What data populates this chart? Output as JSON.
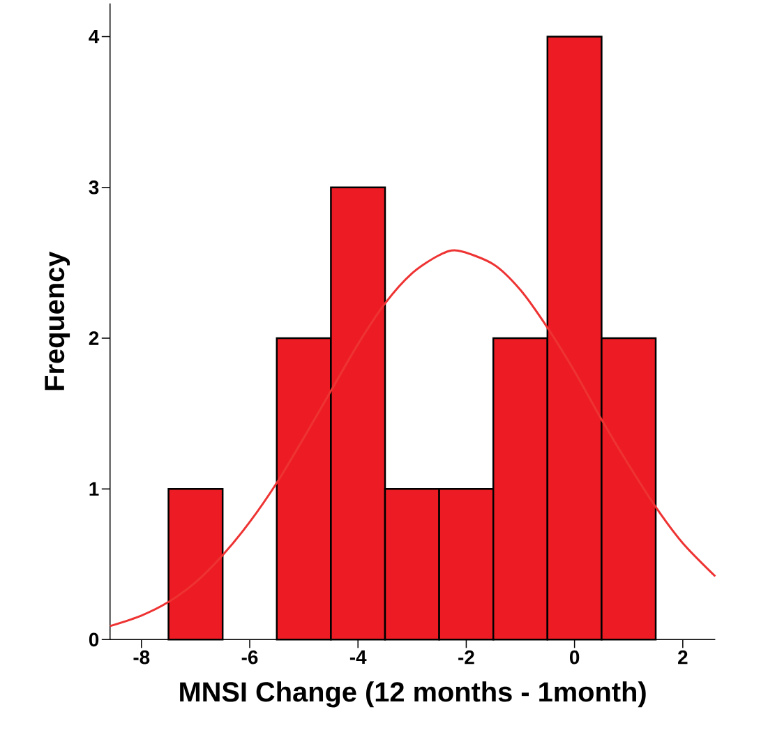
{
  "chart_data": {
    "type": "histogram",
    "xlabel": "MNSI Change (12 months - 1month)",
    "ylabel": "Frequency",
    "bins": [
      -7.5,
      -6.5,
      -5.5,
      -4.5,
      -3.5,
      -2.5,
      -1.5,
      -0.5,
      0.5,
      1.5
    ],
    "values": [
      1,
      0,
      2,
      3,
      1,
      1,
      2,
      4,
      2
    ],
    "color": "#ed1c24",
    "series": [
      {
        "type": "line",
        "color": "#ee3333",
        "x": [
          -8.58,
          -8,
          -7.5,
          -7,
          -6.5,
          -6,
          -5.5,
          -5,
          -4.5,
          -4,
          -3.5,
          -3,
          -2.5,
          -2.15,
          -1.5,
          -1,
          -0.5,
          0,
          0.5,
          1,
          1.5,
          2,
          2.6
        ],
        "values": [
          0.09,
          0.16,
          0.25,
          0.38,
          0.56,
          0.78,
          1.04,
          1.34,
          1.65,
          1.96,
          2.23,
          2.43,
          2.55,
          2.58,
          2.49,
          2.32,
          2.07,
          1.78,
          1.46,
          1.16,
          0.88,
          0.64,
          0.42
        ]
      }
    ],
    "xlim": [
      -8.58,
      2.6
    ],
    "ylim": [
      0,
      4.22
    ],
    "xticks": [
      -8,
      -6,
      -4,
      -2,
      0,
      2
    ],
    "yticks": [
      0,
      1,
      2,
      3,
      4
    ],
    "grid": false
  }
}
